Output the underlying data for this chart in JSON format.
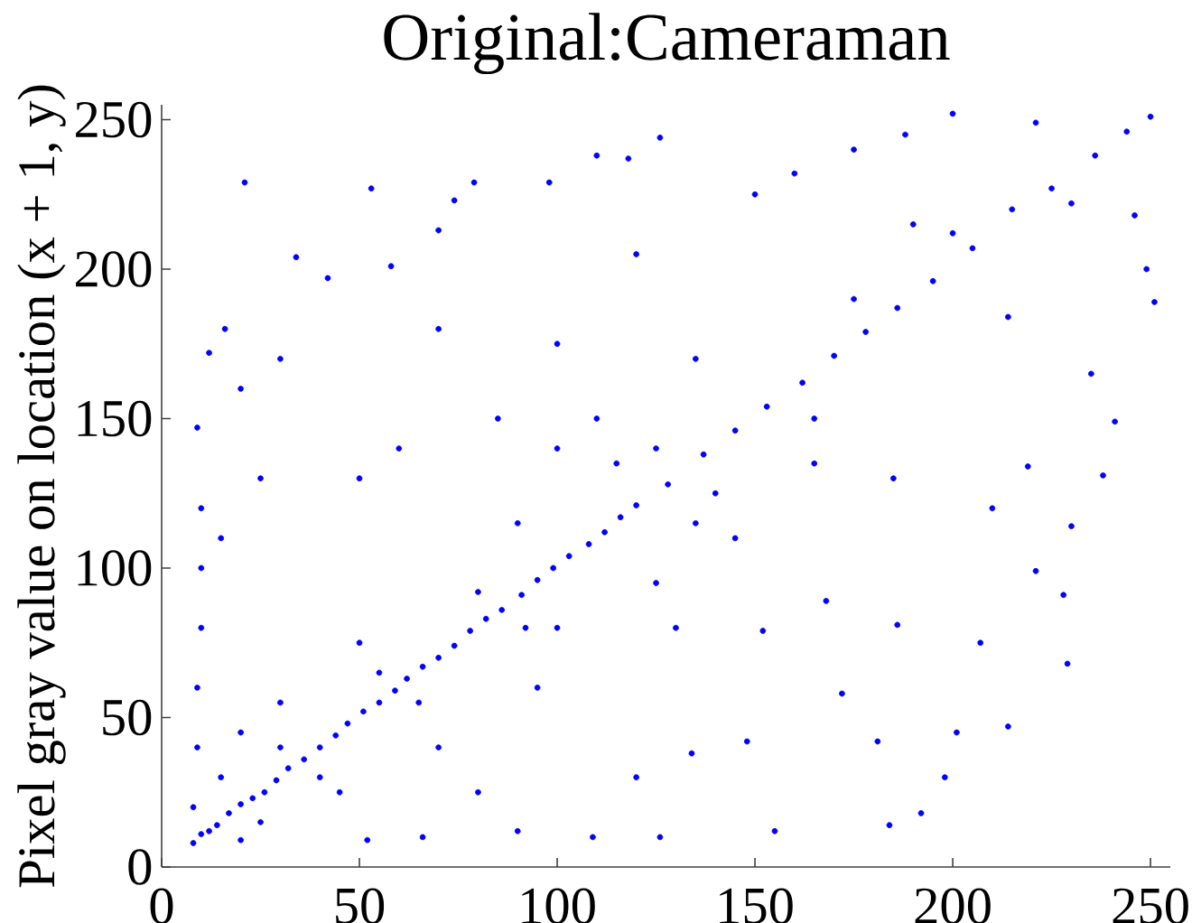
{
  "chart_data": {
    "type": "scatter",
    "title": "Original:Cameraman",
    "ylabel": "Pixel gray value on location (x + 1, y)",
    "xlim": [
      0,
      255
    ],
    "ylim": [
      0,
      255
    ],
    "xticks": [
      0,
      50,
      100,
      150,
      200,
      250
    ],
    "yticks": [
      0,
      50,
      100,
      150,
      200,
      250
    ],
    "marker": "circle",
    "color": "#0000ff",
    "x": [
      8,
      10,
      14,
      20,
      26,
      32,
      40,
      47,
      55,
      62,
      70,
      78,
      86,
      95,
      103,
      112,
      120,
      128,
      137,
      145,
      153,
      162,
      170,
      178,
      186,
      195,
      205,
      215,
      225,
      236,
      244,
      250,
      12,
      17,
      23,
      29,
      36,
      44,
      51,
      59,
      66,
      74,
      82,
      91,
      99,
      108,
      116,
      30,
      40,
      55,
      65,
      80,
      92,
      115,
      135,
      125,
      140,
      165,
      175,
      200,
      230,
      8,
      9,
      9,
      10,
      10,
      10,
      9,
      12,
      16,
      20,
      52,
      66,
      90,
      109,
      126,
      155,
      184,
      21,
      53,
      79,
      34,
      58,
      42,
      70,
      74,
      98,
      110,
      118,
      20,
      30,
      70,
      25,
      60,
      15,
      50,
      85,
      100,
      120,
      126,
      150,
      160,
      175,
      188,
      200,
      221,
      190,
      100,
      110,
      135,
      100,
      125,
      145,
      165,
      90,
      50,
      30,
      20,
      15,
      25,
      45,
      70,
      95,
      130,
      185,
      249,
      251,
      246,
      241,
      238,
      235,
      219,
      214,
      230,
      229,
      214,
      201,
      198,
      192,
      228,
      221,
      207,
      181,
      172,
      148,
      134,
      120,
      186,
      168,
      152,
      210,
      80
    ],
    "values": [
      8,
      11,
      14,
      21,
      25,
      33,
      40,
      48,
      55,
      63,
      70,
      79,
      86,
      96,
      104,
      112,
      121,
      128,
      138,
      146,
      154,
      162,
      171,
      179,
      187,
      196,
      207,
      220,
      227,
      238,
      246,
      251,
      12,
      18,
      23,
      29,
      36,
      44,
      52,
      59,
      67,
      74,
      83,
      91,
      100,
      108,
      117,
      40,
      30,
      65,
      55,
      92,
      80,
      135,
      115,
      140,
      125,
      150,
      190,
      212,
      222,
      20,
      40,
      60,
      80,
      100,
      120,
      147,
      172,
      180,
      9,
      9,
      10,
      12,
      10,
      10,
      12,
      14,
      229,
      227,
      229,
      204,
      201,
      197,
      213,
      223,
      229,
      238,
      237,
      160,
      170,
      180,
      130,
      140,
      110,
      130,
      150,
      175,
      205,
      244,
      225,
      232,
      240,
      245,
      252,
      249,
      215,
      140,
      150,
      170,
      80,
      95,
      110,
      135,
      115,
      75,
      55,
      45,
      30,
      15,
      25,
      40,
      60,
      80,
      130,
      200,
      189,
      218,
      149,
      131,
      165,
      134,
      184,
      114,
      68,
      47,
      45,
      30,
      18,
      91,
      99,
      75,
      42,
      58,
      42,
      38,
      30,
      81,
      89,
      79,
      120,
      25
    ]
  }
}
